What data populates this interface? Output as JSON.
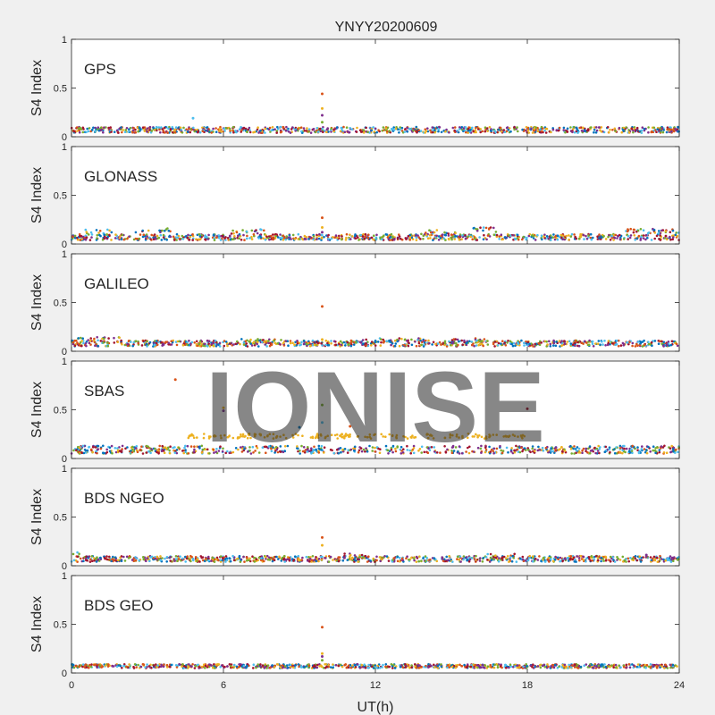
{
  "figure": {
    "title": "YNYY20200609",
    "xlabel": "UT(h)",
    "watermark": "IONISE"
  },
  "chart_data": {
    "type": "scatter",
    "title": "YNYY20200609",
    "xlabel": "UT(h)",
    "ylabel": "S4 Index",
    "xlim": [
      0,
      24
    ],
    "ylim": [
      0,
      1
    ],
    "xticks": [
      0,
      6,
      12,
      18,
      24
    ],
    "yticks": [
      0,
      0.5,
      1
    ],
    "grid": false,
    "colors": [
      "#0072BD",
      "#D95319",
      "#EDB120",
      "#7E2F8E",
      "#77AC30",
      "#4DBEEE",
      "#A2142F"
    ],
    "panels": [
      {
        "label": "GPS",
        "ylabel": "S4 Index",
        "baseline": 0.07,
        "spread": 0.03,
        "bumps": [],
        "spikes": [
          [
            9.9,
            0.44
          ],
          [
            9.9,
            0.29
          ],
          [
            9.9,
            0.22
          ],
          [
            9.9,
            0.15
          ],
          [
            4.8,
            0.19
          ]
        ]
      },
      {
        "label": "GLONASS",
        "ylabel": "S4 Index",
        "baseline": 0.07,
        "spread": 0.03,
        "bumps": [
          [
            0.5,
            1.6,
            0.13
          ],
          [
            2.5,
            4.0,
            0.14
          ],
          [
            6.2,
            7.6,
            0.13
          ],
          [
            13.8,
            15.2,
            0.12
          ],
          [
            15.8,
            16.8,
            0.15
          ],
          [
            21.8,
            24.0,
            0.13
          ]
        ],
        "spikes": [
          [
            9.9,
            0.27
          ],
          [
            9.9,
            0.17
          ],
          [
            9.9,
            0.12
          ]
        ]
      },
      {
        "label": "GALILEO",
        "ylabel": "S4 Index",
        "baseline": 0.08,
        "spread": 0.03,
        "bumps": [
          [
            0.0,
            2.0,
            0.12
          ],
          [
            6.0,
            8.5,
            0.1
          ],
          [
            10.8,
            14.0,
            0.11
          ],
          [
            15.0,
            16.5,
            0.11
          ]
        ],
        "spikes": [
          [
            9.9,
            0.46
          ],
          [
            9.9,
            0.12
          ]
        ]
      },
      {
        "label": "SBAS",
        "ylabel": "S4 Index",
        "baseline": 0.09,
        "spread": 0.04,
        "bumps": [
          [
            4.2,
            17.9,
            0.23
          ]
        ],
        "spikes": [
          [
            4.1,
            0.81
          ],
          [
            6.0,
            0.52
          ],
          [
            6.0,
            0.49
          ],
          [
            9.9,
            0.55
          ],
          [
            9.9,
            0.37
          ],
          [
            18.0,
            0.51
          ],
          [
            9.0,
            0.32
          ],
          [
            11.0,
            0.33
          ]
        ]
      },
      {
        "label": "BDS NGEO",
        "ylabel": "S4 Index",
        "baseline": 0.07,
        "spread": 0.03,
        "bumps": [
          [
            0.0,
            0.4,
            0.12
          ],
          [
            10.6,
            11.5,
            0.1
          ],
          [
            16.3,
            17.5,
            0.1
          ]
        ],
        "spikes": [
          [
            9.9,
            0.29
          ],
          [
            9.9,
            0.21
          ],
          [
            22.7,
            0.11
          ]
        ]
      },
      {
        "label": "BDS GEO",
        "ylabel": "S4 Index",
        "baseline": 0.07,
        "spread": 0.02,
        "bumps": [],
        "spikes": [
          [
            9.9,
            0.47
          ],
          [
            9.9,
            0.2
          ],
          [
            9.9,
            0.17
          ],
          [
            9.9,
            0.13
          ]
        ]
      }
    ]
  }
}
